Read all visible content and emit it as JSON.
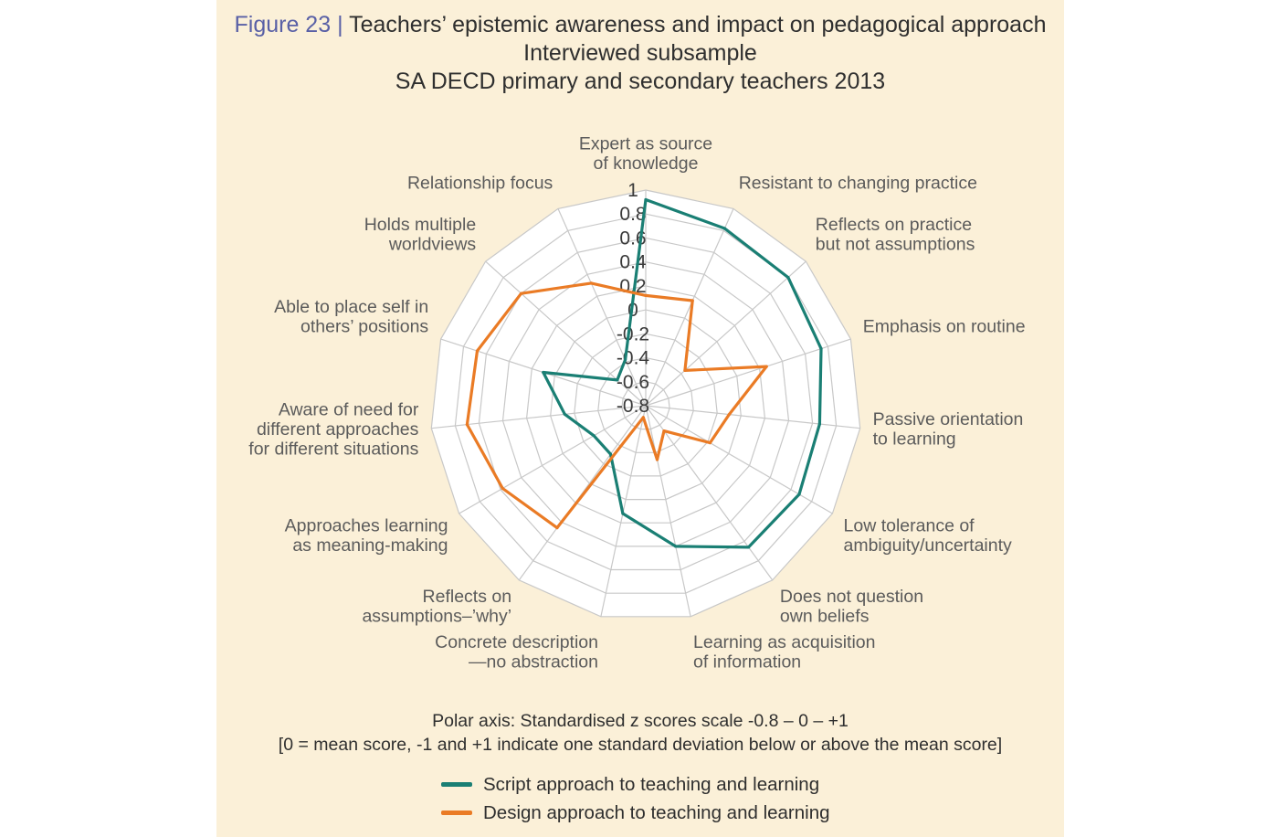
{
  "title": {
    "figure_number": "Figure 23",
    "separator": "|",
    "main": "Teachers’ epistemic awareness and impact on pedagogical approach",
    "subtitle1": "Interviewed subsample",
    "subtitle2": "SA DECD primary and secondary teachers 2013"
  },
  "footnote": {
    "line1": "Polar axis: Standardised z scores scale -0.8 – 0 – +1",
    "line2": "[0 = mean score, -1 and +1 indicate one standard deviation below or above the mean score]"
  },
  "chart_data": {
    "type": "radar",
    "rlim": [
      -0.8,
      1
    ],
    "grid": true,
    "tick_step": 0.2,
    "tick_labels": [
      "1",
      "0.8",
      "0.6",
      "0.4",
      "0.2",
      "0",
      "-0.2",
      "-0.4",
      "-0.6",
      "-0.8"
    ],
    "categories": [
      [
        "Expert as source",
        "of knowledge"
      ],
      [
        "Resistant to changing practice"
      ],
      [
        "Reflects on practice",
        "but not assumptions"
      ],
      [
        "Emphasis on routine"
      ],
      [
        "Passive orientation",
        "to learning"
      ],
      [
        "Low tolerance of",
        "ambiguity/uncertainty"
      ],
      [
        "Does not question",
        "own beliefs"
      ],
      [
        "Learning as acquisition",
        "of information"
      ],
      [
        "Concrete description",
        "—no abstraction"
      ],
      [
        "Reflects on",
        "assumptions–’why’"
      ],
      [
        "Approaches learning",
        "as meaning-making"
      ],
      [
        "Aware of need for",
        "different approaches",
        "for different situations"
      ],
      [
        "Able to place self in",
        "others’ positions"
      ],
      [
        "Holds multiple",
        "worldviews"
      ],
      [
        "Relationship focus"
      ]
    ],
    "series": [
      {
        "name": "Script approach to teaching and learning",
        "color": "#1a7f74",
        "values": [
          0.92,
          0.82,
          0.8,
          0.74,
          0.66,
          0.68,
          0.66,
          0.4,
          0.12,
          -0.3,
          -0.3,
          -0.12,
          0.1,
          -0.48,
          -0.38
        ]
      },
      {
        "name": "Design approach to teaching and learning",
        "color": "#ea7b25",
        "values": [
          0.12,
          0.16,
          -0.36,
          0.26,
          -0.1,
          -0.18,
          -0.54,
          -0.34,
          -0.7,
          0.46,
          0.58,
          0.7,
          0.68,
          0.6,
          0.32
        ]
      }
    ],
    "legend_position": "bottom-center"
  }
}
